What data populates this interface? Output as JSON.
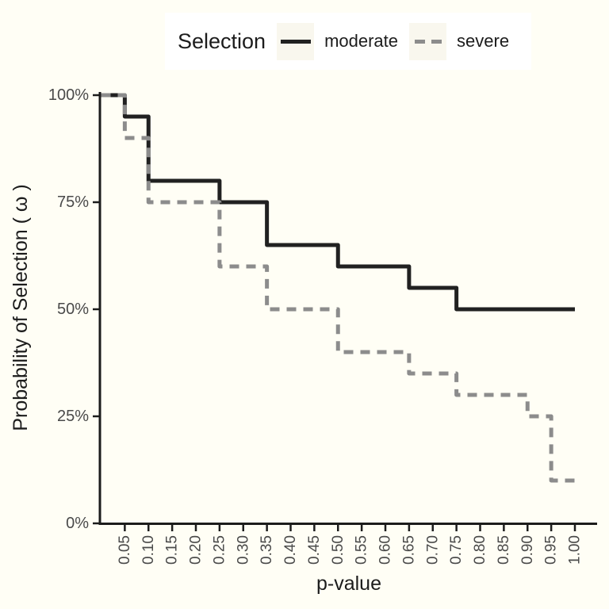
{
  "page": {
    "background_color": "#FFFEF5",
    "legend_background_color": "#FFFFFF",
    "legend_key_color": "#F9F7EE",
    "axis_color": "#1C1C1C",
    "tick_label_color": "#4A4A4A"
  },
  "legend": {
    "title": "Selection",
    "items": [
      {
        "label": "moderate",
        "color": "#212121",
        "style": "solid"
      },
      {
        "label": "severe",
        "color": "#8C8C8C",
        "style": "dashed"
      }
    ]
  },
  "chart_data": {
    "type": "line",
    "subtype": "step",
    "title": "",
    "xlabel": "p-value",
    "ylabel": "Probability of Selection ( ω )",
    "xlim": [
      0,
      1.05
    ],
    "ylim": [
      0,
      100
    ],
    "grid": "off",
    "legend_position": "top-center",
    "x_ticks": [
      {
        "value": 0.05,
        "label": "0.05"
      },
      {
        "value": 0.1,
        "label": "0.10"
      },
      {
        "value": 0.15,
        "label": "0.15"
      },
      {
        "value": 0.2,
        "label": "0.20"
      },
      {
        "value": 0.25,
        "label": "0.25"
      },
      {
        "value": 0.3,
        "label": "0.30"
      },
      {
        "value": 0.35,
        "label": "0.35"
      },
      {
        "value": 0.4,
        "label": "0.40"
      },
      {
        "value": 0.45,
        "label": "0.45"
      },
      {
        "value": 0.5,
        "label": "0.50"
      },
      {
        "value": 0.55,
        "label": "0.55"
      },
      {
        "value": 0.6,
        "label": "0.60"
      },
      {
        "value": 0.65,
        "label": "0.65"
      },
      {
        "value": 0.7,
        "label": "0.70"
      },
      {
        "value": 0.75,
        "label": "0.75"
      },
      {
        "value": 0.8,
        "label": "0.80"
      },
      {
        "value": 0.85,
        "label": "0.85"
      },
      {
        "value": 0.9,
        "label": "0.90"
      },
      {
        "value": 0.95,
        "label": "0.95"
      },
      {
        "value": 1.0,
        "label": "1.00"
      }
    ],
    "y_ticks": [
      {
        "value": 0,
        "label": "0%"
      },
      {
        "value": 25,
        "label": "25%"
      },
      {
        "value": 50,
        "label": "50%"
      },
      {
        "value": 75,
        "label": "75%"
      },
      {
        "value": 100,
        "label": "100%"
      }
    ],
    "series": [
      {
        "name": "moderate",
        "color": "#212121",
        "style": "solid",
        "line_width": 5,
        "steps": [
          {
            "x_start": 0.0,
            "x_end": 0.05,
            "y": 100
          },
          {
            "x_start": 0.05,
            "x_end": 0.1,
            "y": 95
          },
          {
            "x_start": 0.1,
            "x_end": 0.25,
            "y": 80
          },
          {
            "x_start": 0.25,
            "x_end": 0.35,
            "y": 75
          },
          {
            "x_start": 0.35,
            "x_end": 0.5,
            "y": 65
          },
          {
            "x_start": 0.5,
            "x_end": 0.65,
            "y": 60
          },
          {
            "x_start": 0.65,
            "x_end": 0.75,
            "y": 55
          },
          {
            "x_start": 0.75,
            "x_end": 1.0,
            "y": 50
          }
        ]
      },
      {
        "name": "severe",
        "color": "#8C8C8C",
        "style": "dashed",
        "line_width": 5,
        "steps": [
          {
            "x_start": 0.0,
            "x_end": 0.05,
            "y": 100
          },
          {
            "x_start": 0.05,
            "x_end": 0.1,
            "y": 90
          },
          {
            "x_start": 0.1,
            "x_end": 0.25,
            "y": 75
          },
          {
            "x_start": 0.25,
            "x_end": 0.35,
            "y": 60
          },
          {
            "x_start": 0.35,
            "x_end": 0.5,
            "y": 50
          },
          {
            "x_start": 0.5,
            "x_end": 0.65,
            "y": 40
          },
          {
            "x_start": 0.65,
            "x_end": 0.75,
            "y": 35
          },
          {
            "x_start": 0.75,
            "x_end": 0.9,
            "y": 30
          },
          {
            "x_start": 0.9,
            "x_end": 0.95,
            "y": 25
          },
          {
            "x_start": 0.95,
            "x_end": 1.0,
            "y": 10
          }
        ]
      }
    ]
  }
}
